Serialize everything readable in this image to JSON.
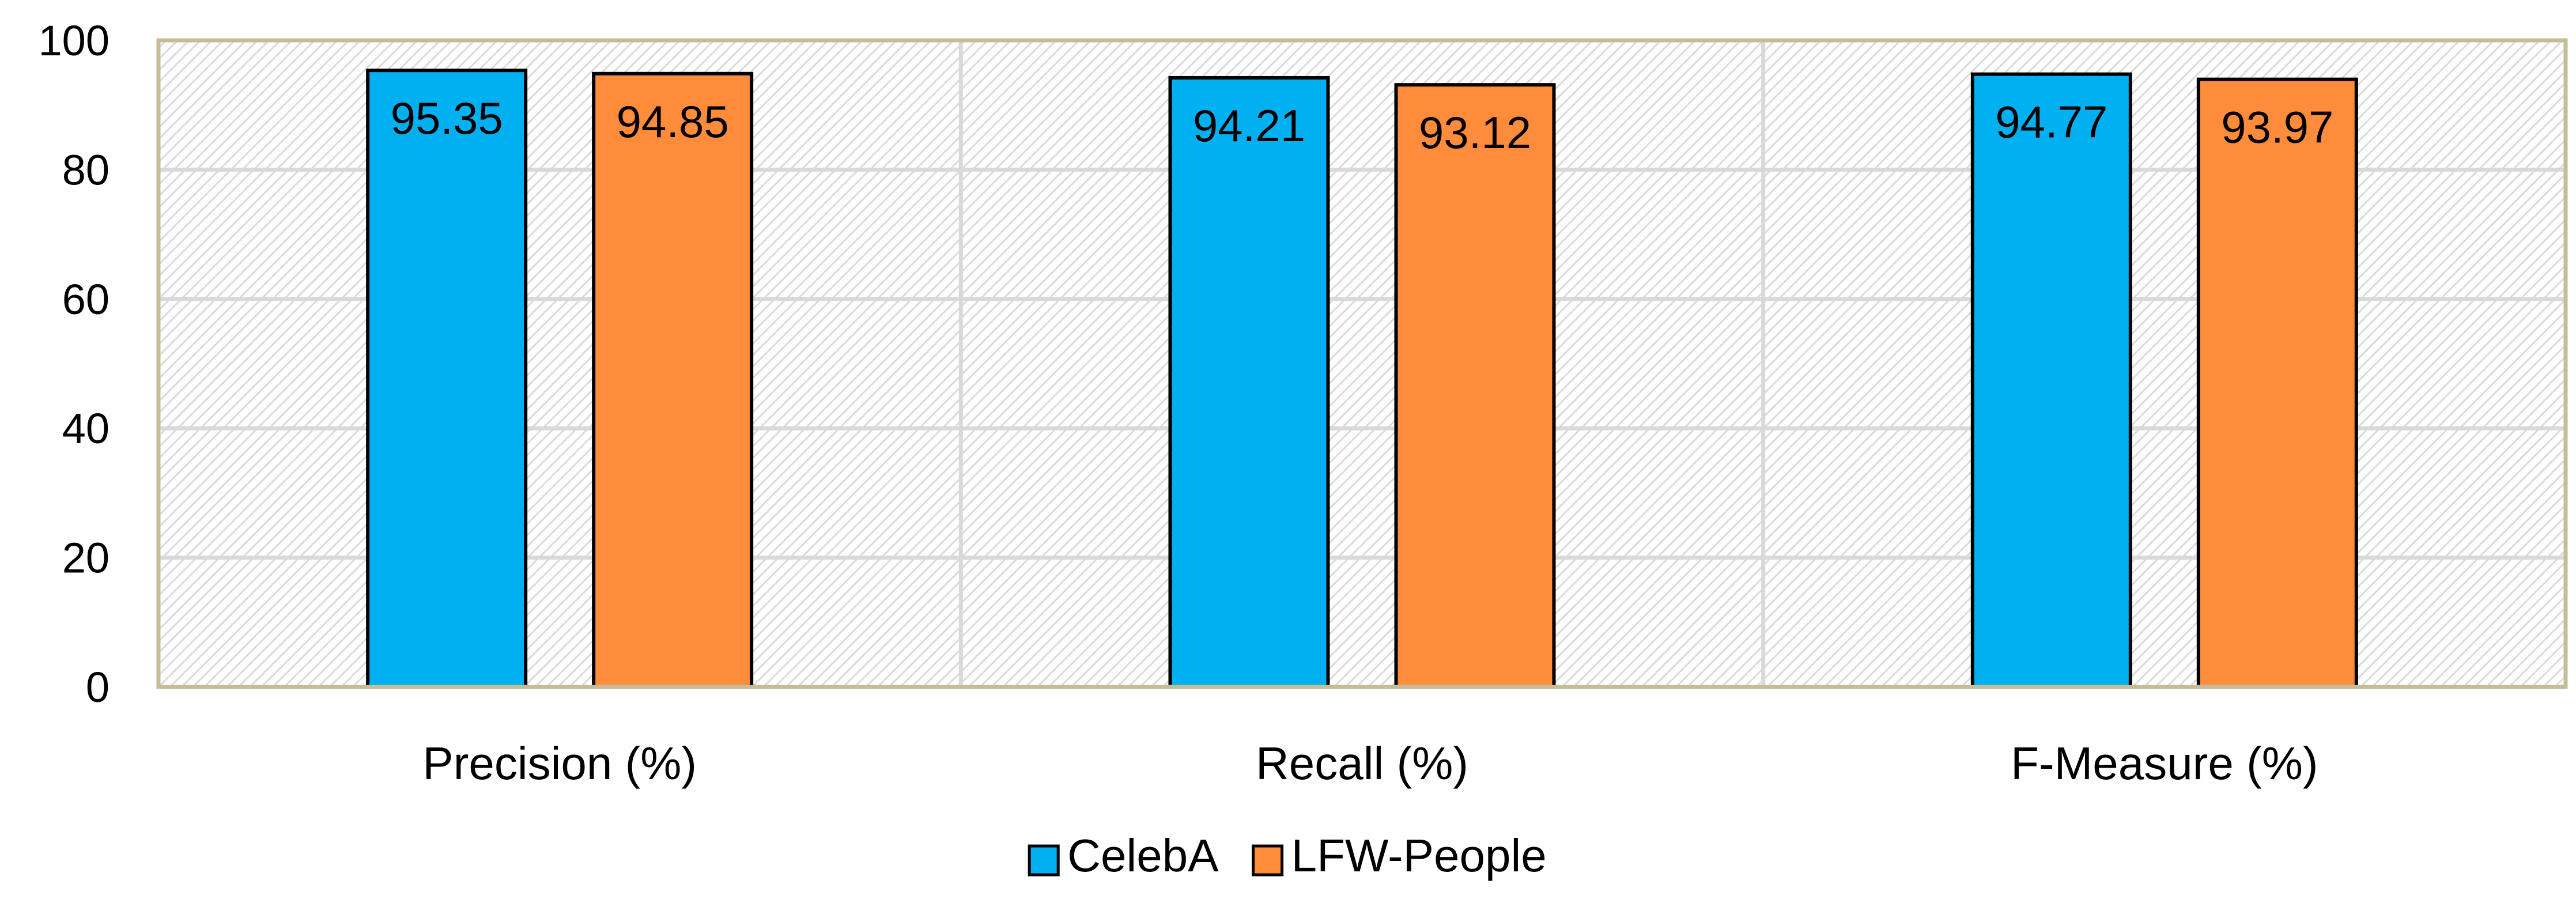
{
  "chart_data": {
    "type": "bar",
    "categories": [
      "Precision (%)",
      "Recall (%)",
      "F-Measure (%)"
    ],
    "series": [
      {
        "name": "CelebA",
        "values": [
          95.35,
          94.21,
          94.77
        ],
        "color": "#00B0F0"
      },
      {
        "name": "LFW-People",
        "values": [
          94.85,
          93.12,
          93.97
        ],
        "color": "#FF8C3A"
      }
    ],
    "value_labels": {
      "CelebA": [
        "95.35",
        "94.21",
        "94.77"
      ],
      "LFW-People": [
        "94.85",
        "93.12",
        "93.97"
      ]
    },
    "ylim": [
      0,
      100
    ],
    "yticks": [
      "0",
      "20",
      "40",
      "60",
      "80",
      "100"
    ],
    "grid": true,
    "legend": {
      "position": "bottom-center",
      "labels": [
        "CelebA",
        "LFW-People"
      ]
    },
    "plot_background": "diagonal-hatch",
    "frame_color": "#C4BD97"
  }
}
